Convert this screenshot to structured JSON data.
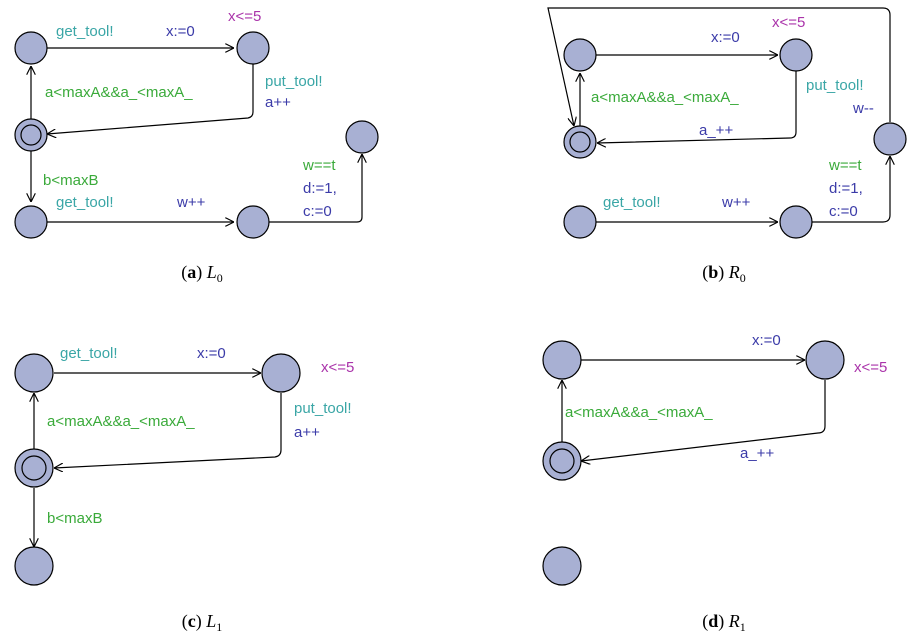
{
  "colors": {
    "node_fill": "#a8b0d3",
    "sync": "#3aa6a6",
    "guard": "#3aaa3a",
    "update": "#3b3ba8",
    "invariant": "#aa34aa"
  },
  "panels": {
    "a": {
      "caption_letter": "a",
      "caption_symbol": "L",
      "caption_sub": "0",
      "labels": {
        "get_tool_1": "get_tool!",
        "x_reset": "x:=0",
        "inv": "x<=5",
        "guard_a": "a<maxA&&a_<maxA_",
        "put_tool": "put_tool!",
        "a_inc": "a++",
        "guard_b": "b<maxB",
        "get_tool_2": "get_tool!",
        "w_inc": "w++",
        "w_eq_t": "w==t",
        "d_set": "d:=1,",
        "c_set": "c:=0"
      }
    },
    "b": {
      "caption_letter": "b",
      "caption_symbol": "R",
      "caption_sub": "0",
      "labels": {
        "x_reset": "x:=0",
        "inv": "x<=5",
        "put_tool": "put_tool!",
        "w_dec": "w--",
        "guard_a": "a<maxA&&a_<maxA_",
        "a__inc": "a_++",
        "w_eq_t": "w==t",
        "d_set": "d:=1,",
        "c_set": "c:=0",
        "get_tool": "get_tool!",
        "w_inc": "w++"
      }
    },
    "c": {
      "caption_letter": "c",
      "caption_symbol": "L",
      "caption_sub": "1",
      "labels": {
        "get_tool": "get_tool!",
        "x_reset": "x:=0",
        "inv": "x<=5",
        "guard_a": "a<maxA&&a_<maxA_",
        "put_tool": "put_tool!",
        "a_inc": "a++",
        "guard_b": "b<maxB"
      }
    },
    "d": {
      "caption_letter": "d",
      "caption_symbol": "R",
      "caption_sub": "1",
      "labels": {
        "x_reset": "x:=0",
        "inv": "x<=5",
        "guard_a": "a<maxA&&a_<maxA_",
        "a__inc": "a_++"
      }
    }
  }
}
